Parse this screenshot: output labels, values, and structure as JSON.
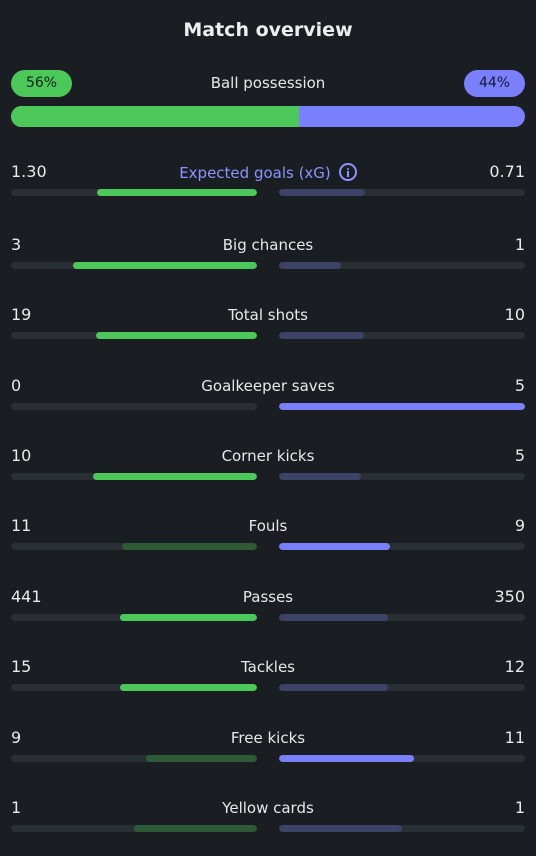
{
  "header": {
    "title": "Match overview"
  },
  "possession": {
    "label": "Ball possession",
    "home_pct_label": "56%",
    "away_pct_label": "44%",
    "home_fraction": 0.56
  },
  "colors": {
    "home_strong": "#4cc75a",
    "home_weak": "#2f5a38",
    "away_strong": "#7a80fb",
    "away_weak": "#3c4268"
  },
  "stats": [
    {
      "label": "Expected goals (xG)",
      "home": "1.30",
      "away": "0.71",
      "home_fraction": 0.65,
      "away_fraction": 0.35,
      "leader": "home",
      "has_info": true
    },
    {
      "label": "Big chances",
      "home": "3",
      "away": "1",
      "home_fraction": 0.75,
      "away_fraction": 0.25,
      "leader": "home"
    },
    {
      "label": "Total shots",
      "home": "19",
      "away": "10",
      "home_fraction": 0.655,
      "away_fraction": 0.345,
      "leader": "home"
    },
    {
      "label": "Goalkeeper saves",
      "home": "0",
      "away": "5",
      "home_fraction": 0.0,
      "away_fraction": 1.0,
      "leader": "away"
    },
    {
      "label": "Corner kicks",
      "home": "10",
      "away": "5",
      "home_fraction": 0.667,
      "away_fraction": 0.333,
      "leader": "home"
    },
    {
      "label": "Fouls",
      "home": "11",
      "away": "9",
      "home_fraction": 0.55,
      "away_fraction": 0.45,
      "leader": "away"
    },
    {
      "label": "Passes",
      "home": "441",
      "away": "350",
      "home_fraction": 0.557,
      "away_fraction": 0.443,
      "leader": "home"
    },
    {
      "label": "Tackles",
      "home": "15",
      "away": "12",
      "home_fraction": 0.556,
      "away_fraction": 0.444,
      "leader": "home"
    },
    {
      "label": "Free kicks",
      "home": "9",
      "away": "11",
      "home_fraction": 0.45,
      "away_fraction": 0.55,
      "leader": "away"
    },
    {
      "label": "Yellow cards",
      "home": "1",
      "away": "1",
      "home_fraction": 0.5,
      "away_fraction": 0.5,
      "leader": "none"
    }
  ]
}
